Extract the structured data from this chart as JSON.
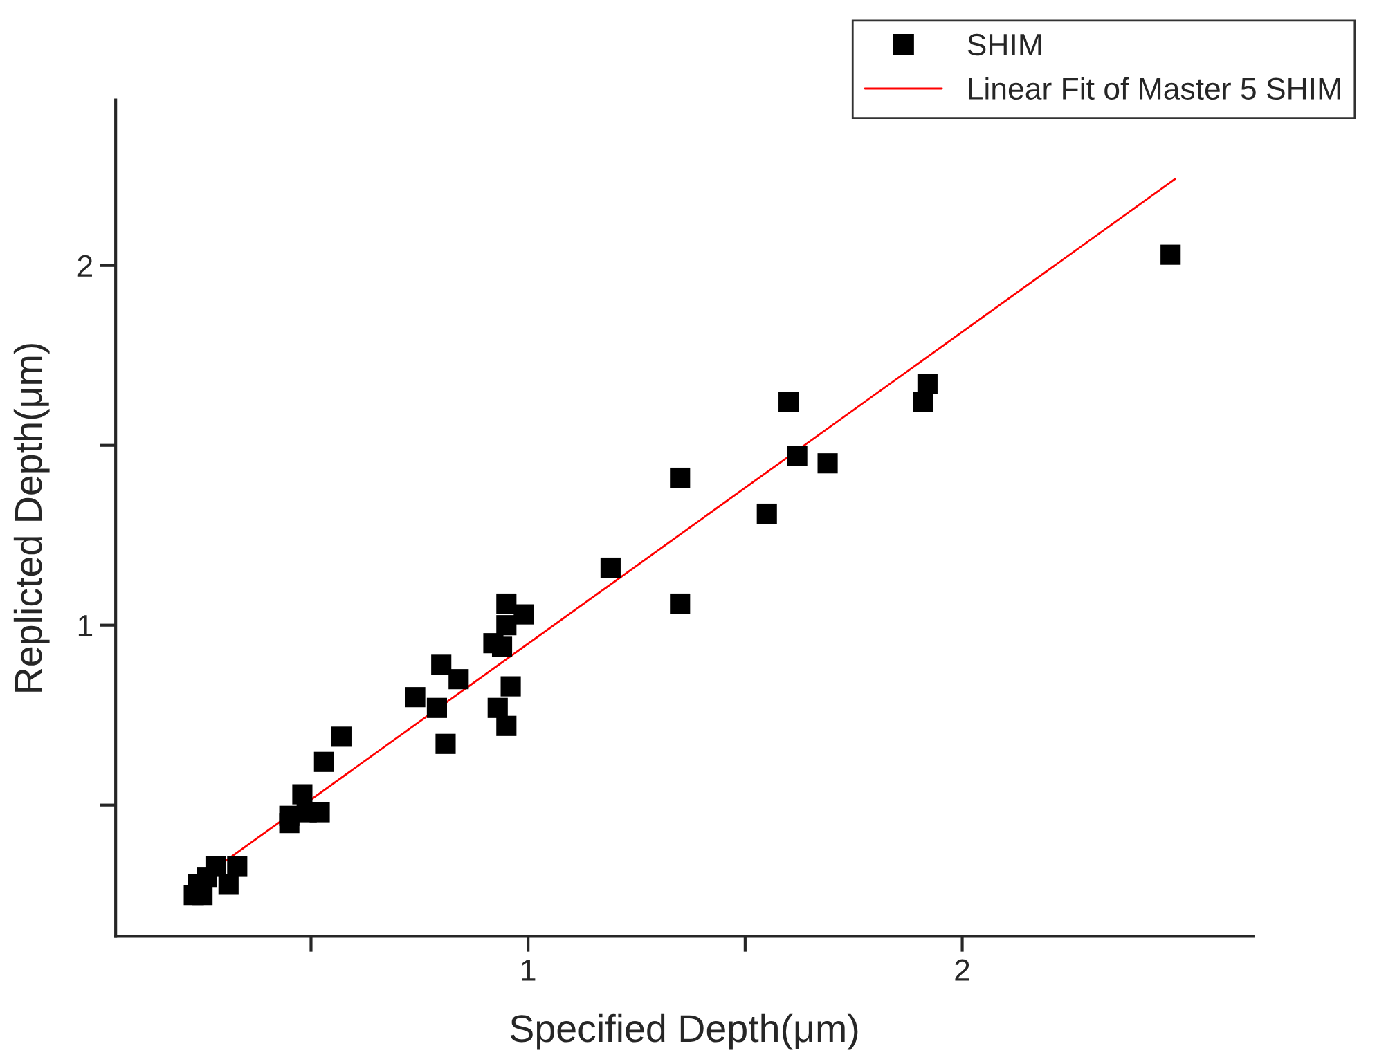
{
  "chart_data": {
    "type": "scatter",
    "xlabel": "Specified Depth(μm)",
    "ylabel": "Replicted Depth(μm)",
    "xlim": [
      0.05,
      2.67
    ],
    "ylim": [
      0.135,
      2.46
    ],
    "xticks": [
      {
        "value": 0.5,
        "label": null
      },
      1,
      {
        "value": 1.5,
        "label": null
      },
      2
    ],
    "yticks": [
      {
        "value": 0.5,
        "label": null
      },
      1,
      {
        "value": 1.5,
        "label": null
      },
      2
    ],
    "legend": "top right",
    "grid": false,
    "series": [
      {
        "name": "SHIM",
        "marker": "square",
        "color": "#000000",
        "x": [
          0.23,
          0.25,
          0.24,
          0.26,
          0.28,
          0.31,
          0.33,
          0.45,
          0.45,
          0.48,
          0.52,
          0.49,
          0.53,
          0.57,
          0.74,
          0.79,
          0.8,
          0.84,
          0.81,
          0.92,
          0.94,
          0.95,
          0.95,
          0.99,
          0.96,
          0.93,
          0.95,
          1.19,
          1.35,
          1.35,
          1.6,
          1.55,
          1.62,
          1.69,
          1.92,
          1.91,
          2.48
        ],
        "values": [
          0.25,
          0.25,
          0.28,
          0.3,
          0.33,
          0.28,
          0.33,
          0.45,
          0.47,
          0.53,
          0.48,
          0.48,
          0.62,
          0.69,
          0.8,
          0.77,
          0.89,
          0.85,
          0.67,
          0.95,
          0.94,
          1.0,
          1.06,
          1.03,
          0.83,
          0.77,
          0.72,
          1.16,
          1.41,
          1.06,
          1.62,
          1.31,
          1.47,
          1.45,
          1.67,
          1.62,
          2.03
        ]
      },
      {
        "name": "Linear Fit of Master 5 SHIM",
        "type": "line",
        "marker": "none",
        "line_style": "solid",
        "color": "#ff0000",
        "x": [
          0.24,
          2.49
        ],
        "values": [
          0.29,
          2.24
        ]
      }
    ]
  }
}
